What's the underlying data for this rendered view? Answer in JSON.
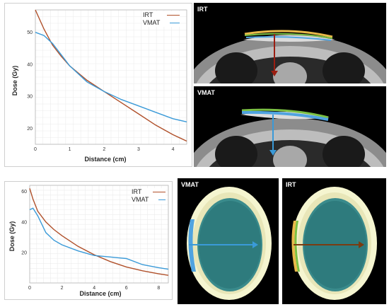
{
  "colors": {
    "irt": "#b0502a",
    "vmat": "#3a9ad8"
  },
  "top_chart": {
    "ylabel": "Dose (Gy)",
    "xlabel": "Distance (cm)",
    "yticks": [
      "20",
      "30",
      "40",
      "50"
    ],
    "xticks": [
      "0",
      "1",
      "2",
      "3",
      "4"
    ],
    "legend": [
      "IRT",
      "VMAT"
    ]
  },
  "bottom_chart": {
    "ylabel": "Dose (Gy)",
    "xlabel": "Distance (cm)",
    "yticks": [
      "20",
      "40",
      "60"
    ],
    "xticks": [
      "0",
      "2",
      "4",
      "6",
      "8"
    ],
    "legend": [
      "IRT",
      "VMAT"
    ]
  },
  "panels": {
    "chest_irt": "IRT",
    "chest_vmat": "VMAT",
    "head_vmat": "VMAT",
    "head_irt": "IRT"
  },
  "chart_data": [
    {
      "type": "line",
      "xlabel": "Distance (cm)",
      "ylabel": "Dose (Gy)",
      "xlim": [
        0,
        4.4
      ],
      "ylim": [
        15,
        57
      ],
      "series": [
        {
          "name": "IRT",
          "x": [
            0,
            0.25,
            0.5,
            0.75,
            1,
            1.5,
            2,
            2.5,
            3,
            3.5,
            4,
            4.4
          ],
          "y": [
            57,
            51,
            46,
            42.5,
            39.5,
            35,
            31.5,
            28,
            24.5,
            21,
            18,
            16
          ]
        },
        {
          "name": "VMAT",
          "x": [
            0,
            0.25,
            0.5,
            0.75,
            1,
            1.5,
            2,
            2.5,
            3,
            3.5,
            4,
            4.4
          ],
          "y": [
            50,
            49,
            46.5,
            43,
            39.5,
            34.5,
            31.5,
            29,
            27,
            25,
            23,
            22
          ]
        }
      ]
    },
    {
      "type": "line",
      "xlabel": "Distance (cm)",
      "ylabel": "Dose (Gy)",
      "xlim": [
        0,
        8.6
      ],
      "ylim": [
        0,
        64
      ],
      "series": [
        {
          "name": "IRT",
          "x": [
            0,
            0.2,
            0.5,
            1,
            1.5,
            2,
            3,
            4,
            5,
            6,
            7,
            8,
            8.6
          ],
          "y": [
            62,
            55,
            47,
            40,
            35,
            31,
            24,
            18.5,
            14,
            10.5,
            8,
            6,
            5
          ]
        },
        {
          "name": "VMAT",
          "x": [
            0,
            0.2,
            0.5,
            1,
            1.5,
            2,
            3,
            4,
            5,
            5.5,
            6,
            7,
            8,
            8.6
          ],
          "y": [
            48,
            49,
            44,
            33,
            28,
            25,
            21,
            18,
            17,
            16.5,
            16,
            12,
            10,
            9
          ]
        }
      ]
    }
  ]
}
